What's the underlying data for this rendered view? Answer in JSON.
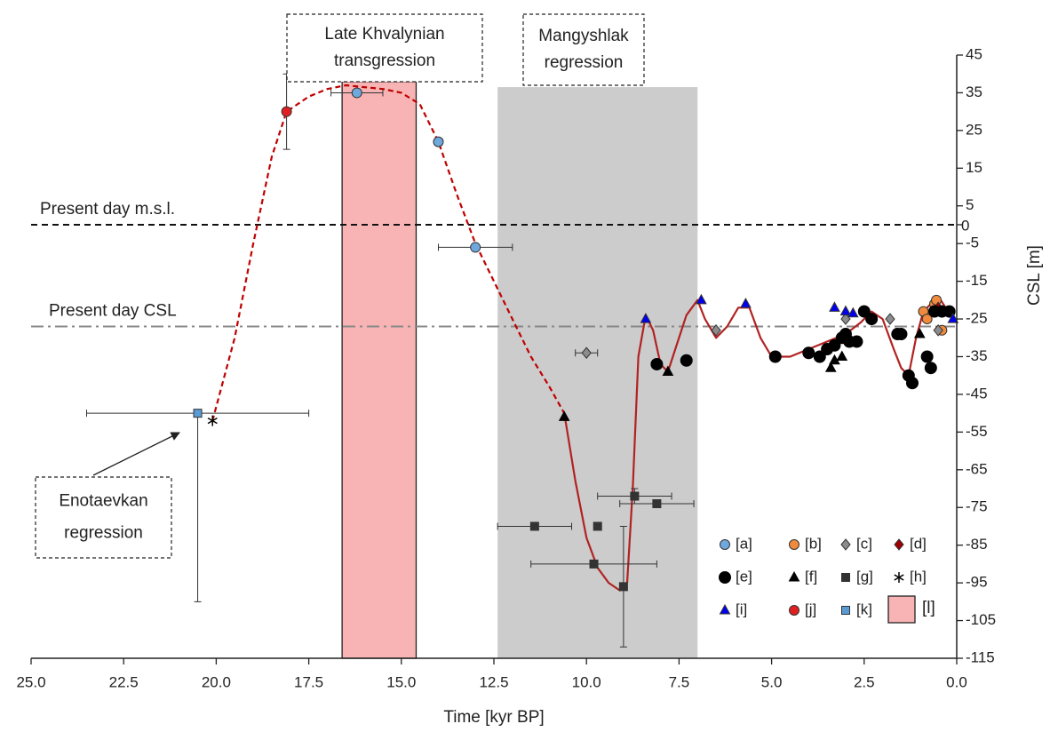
{
  "chart_data": {
    "type": "scatter",
    "x_label": "Time [kyr BP]",
    "y_label": "CSL [m]",
    "xlim": [
      25,
      0
    ],
    "ylim": [
      -115,
      45
    ],
    "xticks": [
      {
        "value": 25,
        "label": "25.0"
      },
      {
        "value": 22.5,
        "label": "22.5"
      },
      {
        "value": 20,
        "label": "20.0"
      },
      {
        "value": 17.5,
        "label": "17.5"
      },
      {
        "value": 15,
        "label": "15.0"
      },
      {
        "value": 12.5,
        "label": "12.5"
      },
      {
        "value": 10,
        "label": "10.0"
      },
      {
        "value": 7.5,
        "label": "7.5"
      },
      {
        "value": 5,
        "label": "5.0"
      },
      {
        "value": 2.5,
        "label": "2.5"
      },
      {
        "value": 0,
        "label": "0.0"
      }
    ],
    "yticks": [
      45,
      35,
      25,
      15,
      5,
      0,
      -5,
      -15,
      -25,
      -35,
      -45,
      -55,
      -65,
      -75,
      -85,
      -95,
      -105,
      -115
    ],
    "legend_position": "lower right",
    "spans": [
      {
        "name": "[l]",
        "x0": 16.6,
        "x1": 14.6,
        "top": 38,
        "color": "#f8b4b4",
        "edge": "#222"
      },
      {
        "x0": 12.4,
        "x1": 7.0,
        "top": 36.5,
        "color": "#cccccc"
      }
    ],
    "hlines": [
      {
        "label": "Present day m.s.l.",
        "value": 0,
        "color": "#111",
        "dash": "7 5"
      },
      {
        "label": "Present day CSL",
        "value": -27,
        "color": "#888",
        "dash": "14 5 3 5"
      }
    ],
    "lines": [
      {
        "color": "#c00000",
        "dash": "6 4",
        "x": [
          20.1,
          19.5,
          19,
          18.5,
          18.1,
          17.5,
          17,
          16.5,
          16,
          15.5,
          15,
          14.5,
          14,
          13.5,
          13,
          12.5,
          12,
          11.5,
          11,
          10.6
        ],
        "values": [
          -52,
          -30,
          -5,
          18,
          30,
          34,
          36,
          37,
          36.5,
          36,
          35,
          32,
          22,
          8,
          -5,
          -15,
          -25,
          -35,
          -43,
          -50
        ]
      },
      {
        "color": "#b22222",
        "dash": "none",
        "x": [
          10.6,
          10.3,
          10,
          9.7,
          9.4,
          9.1,
          8.9,
          8.75,
          8.6,
          8.4,
          8.2,
          8.0,
          7.8,
          7.6,
          7.3,
          7.0,
          6.8,
          6.5,
          6.2,
          5.9,
          5.6,
          5.3,
          5.0,
          4.5,
          4.0,
          3.5,
          3.0,
          2.6,
          2.3,
          2.0,
          1.7,
          1.5,
          1.3,
          1.1,
          0.9,
          0.7,
          0.5,
          0.3,
          0.1
        ],
        "values": [
          -50,
          -68,
          -83,
          -91,
          -95,
          -97,
          -95,
          -70,
          -35,
          -24,
          -28,
          -37,
          -39,
          -33,
          -24,
          -20,
          -25,
          -30,
          -27,
          -22,
          -22,
          -30,
          -35,
          -35,
          -33,
          -31,
          -29,
          -26,
          -23,
          -25,
          -33,
          -38,
          -40,
          -30,
          -23,
          -21,
          -19,
          -22,
          -25
        ]
      }
    ],
    "series": [
      {
        "name": "[a]",
        "marker": "circle",
        "color": "#6fa8dc",
        "x": [
          16.2,
          14.0,
          13.0
        ],
        "values": [
          35,
          22,
          -6
        ],
        "xerr": [
          0.7,
          0.1,
          1.0
        ],
        "yerr": [
          null,
          null,
          null
        ]
      },
      {
        "name": "[b]",
        "marker": "circle",
        "color": "#f08a3c",
        "x": [
          0.9,
          0.8,
          0.6,
          0.55,
          0.4
        ],
        "values": [
          -23,
          -25,
          -21,
          -20,
          -28
        ]
      },
      {
        "name": "[c]",
        "marker": "diamond",
        "color": "#8c8c8c",
        "x": [
          10.0,
          6.5,
          3.0,
          1.8,
          0.5
        ],
        "values": [
          -34,
          -28,
          -25,
          -25,
          -28
        ],
        "xerr": [
          0.3,
          null,
          null,
          null,
          null
        ],
        "yerr": [
          null,
          null,
          null,
          null,
          null
        ]
      },
      {
        "name": "[d]",
        "marker": "diamond",
        "color": "#a00000",
        "x": [
          0.5
        ],
        "values": [
          -22
        ]
      },
      {
        "name": "[e]",
        "marker": "circle",
        "color": "#000000",
        "x": [
          8.1,
          7.3,
          4.9,
          4.0,
          3.7,
          3.5,
          3.3,
          3.1,
          3.0,
          2.9,
          2.7,
          2.5,
          2.3,
          1.6,
          1.5,
          1.3,
          1.2,
          0.8,
          0.7,
          0.6,
          0.4,
          0.2
        ],
        "values": [
          -37,
          -36,
          -35,
          -34,
          -35,
          -33,
          -32,
          -30,
          -29,
          -31,
          -31,
          -23,
          -25,
          -29,
          -29,
          -40,
          -42,
          -35,
          -38,
          -23,
          -23,
          -23
        ]
      },
      {
        "name": "[f]",
        "marker": "triangle",
        "color": "#000000",
        "x": [
          10.6,
          7.8,
          3.4,
          3.3,
          3.1,
          1.0
        ],
        "values": [
          -51,
          -39,
          -38,
          -36,
          -35,
          -29
        ]
      },
      {
        "name": "[g]",
        "marker": "square",
        "color": "#333333",
        "x": [
          11.4,
          9.7,
          9.8,
          8.7,
          8.1,
          9.0
        ],
        "values": [
          -80,
          -80,
          -90,
          -72,
          -74,
          -96
        ],
        "xerr": [
          1.0,
          null,
          1.7,
          1.0,
          1.0,
          null
        ],
        "yerr": [
          null,
          null,
          null,
          [
            2,
            2
          ],
          null,
          [
            16,
            16
          ]
        ]
      },
      {
        "name": "[h]",
        "marker": "asterisk",
        "color": "#000000",
        "x": [
          20.1
        ],
        "values": [
          -52
        ]
      },
      {
        "name": "[i]",
        "marker": "triangle",
        "color": "#0000ee",
        "x": [
          8.4,
          6.9,
          5.7,
          3.3,
          3.0,
          2.8,
          0.1
        ],
        "values": [
          -25,
          -20,
          -21,
          -22,
          -23,
          -23.5,
          -25
        ]
      },
      {
        "name": "[j]",
        "marker": "circle",
        "color": "#e02020",
        "x": [
          18.1
        ],
        "values": [
          30
        ],
        "xerr": [
          null
        ],
        "yerr": [
          [
            10,
            10
          ]
        ]
      },
      {
        "name": "[k]",
        "marker": "square",
        "color": "#5b9bd5",
        "x": [
          20.5
        ],
        "values": [
          -50
        ],
        "xerr": [
          3.0
        ],
        "yerr": [
          [
            50,
            0
          ]
        ]
      }
    ],
    "annotations": [
      {
        "lines": [
          "Late Khvalynian",
          "transgression"
        ]
      },
      {
        "lines": [
          "Mangyshlak",
          "regression"
        ]
      },
      {
        "lines": [
          "Enotaevkan",
          "regression"
        ]
      }
    ]
  }
}
